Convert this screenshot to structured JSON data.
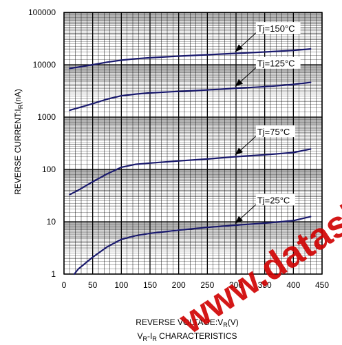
{
  "chart_data": {
    "type": "line",
    "title": "",
    "subtitle": "VR-IR CHARACTERISTICS",
    "subtitle_parts": {
      "a": "V",
      "a_sub": "R",
      "mid": "-I",
      "b_sub": "R",
      "tail": " CHARACTERISTICS"
    },
    "xlabel": "REVERSE VOLTAGE:VR(V)",
    "xlabel_parts": {
      "main": "REVERSE VOLTAGE:V",
      "sub": "R",
      "tail": "(V)"
    },
    "ylabel": "REVERSE CURRENT:IR(nA)",
    "ylabel_parts": {
      "main": "REVERSE CURRENT:I",
      "sub": "R",
      "tail": "(nA)"
    },
    "xlim": [
      0,
      450
    ],
    "ylim": [
      1,
      100000
    ],
    "yscale": "log",
    "grid": true,
    "x_ticks": [
      0,
      50,
      100,
      150,
      200,
      250,
      300,
      350,
      400,
      450
    ],
    "x_tick_labels": [
      "0",
      "50",
      "100",
      "150",
      "200",
      "250",
      "300",
      "350",
      "400",
      "450"
    ],
    "y_ticks": [
      1,
      10,
      100,
      1000,
      10000,
      100000
    ],
    "y_tick_labels": [
      "1",
      "10",
      "100",
      "1000",
      "10000",
      "100000"
    ],
    "series": [
      {
        "name": "Tj=150°C",
        "x": [
          10,
          25,
          50,
          75,
          100,
          125,
          150,
          200,
          250,
          300,
          350,
          400,
          430
        ],
        "y": [
          8500,
          9000,
          10000,
          11200,
          12200,
          13000,
          13600,
          14600,
          15500,
          16500,
          17500,
          18800,
          20000
        ],
        "arrow_at": [
          295,
          16200
        ]
      },
      {
        "name": "Tj=125°C",
        "x": [
          10,
          25,
          50,
          75,
          100,
          125,
          150,
          200,
          250,
          300,
          350,
          400,
          430
        ],
        "y": [
          1350,
          1500,
          1800,
          2200,
          2550,
          2750,
          2900,
          3100,
          3300,
          3550,
          3800,
          4200,
          4600
        ],
        "arrow_at": [
          295,
          3500
        ]
      },
      {
        "name": "Tj=75°C",
        "x": [
          10,
          25,
          50,
          75,
          100,
          125,
          150,
          200,
          250,
          300,
          350,
          400,
          430
        ],
        "y": [
          33,
          40,
          58,
          82,
          110,
          125,
          132,
          145,
          158,
          175,
          190,
          210,
          245
        ],
        "arrow_at": [
          295,
          172
        ]
      },
      {
        "name": "Tj=25°C",
        "x": [
          18,
          25,
          50,
          75,
          100,
          125,
          150,
          200,
          250,
          300,
          350,
          400,
          430
        ],
        "y": [
          1.0,
          1.25,
          2.1,
          3.3,
          4.6,
          5.4,
          6.0,
          6.9,
          7.8,
          8.6,
          9.4,
          10.5,
          12.5
        ],
        "arrow_at": [
          295,
          8.5
        ]
      }
    ],
    "colors": {
      "line": "#1a1a6e",
      "grid": "#000000",
      "text": "#000000"
    }
  },
  "watermark": {
    "text": "www.datasheetbook.com",
    "color": "#d00000"
  }
}
